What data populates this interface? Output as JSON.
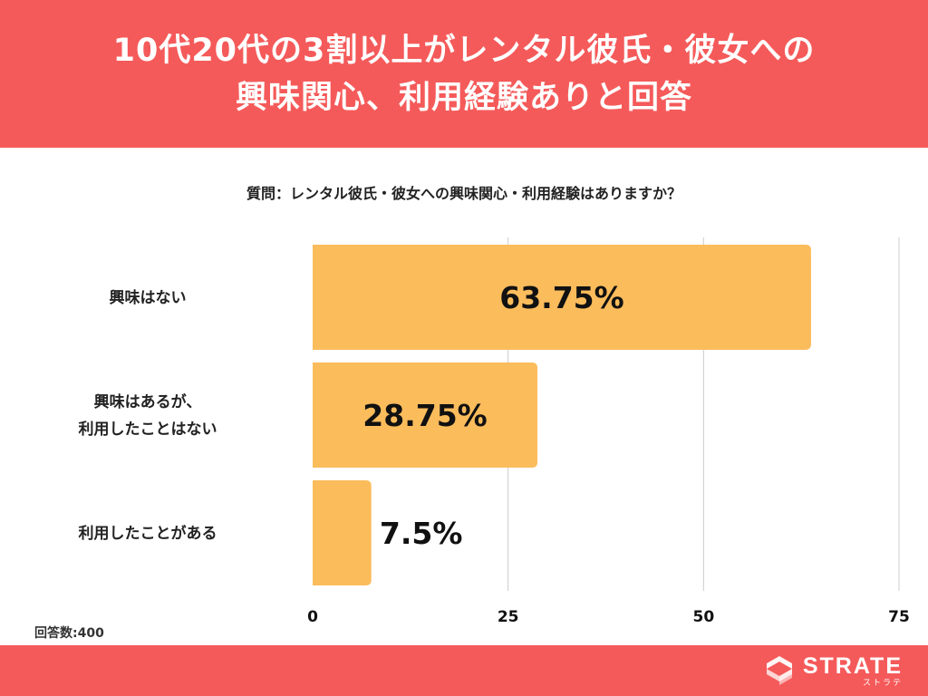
{
  "header": {
    "title_line1": "10代20代の3割以上がレンタル彼氏・彼女への",
    "title_line2": "興味関心、利用経験ありと回答"
  },
  "question": "質問：レンタル彼氏・彼女への興味関心・利用経験はありますか？",
  "sample_size": "回答数:400",
  "colors": {
    "header_bg": "#f55a5a",
    "bar": "#fbbc5c",
    "grid": "#cccccc"
  },
  "logo": {
    "main": "STRATE",
    "sub": "ストラテ",
    "icon": "strate-logo-icon"
  },
  "chart_data": {
    "type": "bar",
    "orientation": "horizontal",
    "categories": [
      [
        "興味はない"
      ],
      [
        "興味はあるが、",
        "利用したことはない"
      ],
      [
        "利用したことがある"
      ]
    ],
    "values": [
      63.75,
      28.75,
      7.5
    ],
    "value_labels": [
      "63.75%",
      "28.75%",
      "7.5%"
    ],
    "xlim": [
      0,
      75
    ],
    "xticks": [
      0,
      25,
      50,
      75
    ],
    "grid": true
  }
}
